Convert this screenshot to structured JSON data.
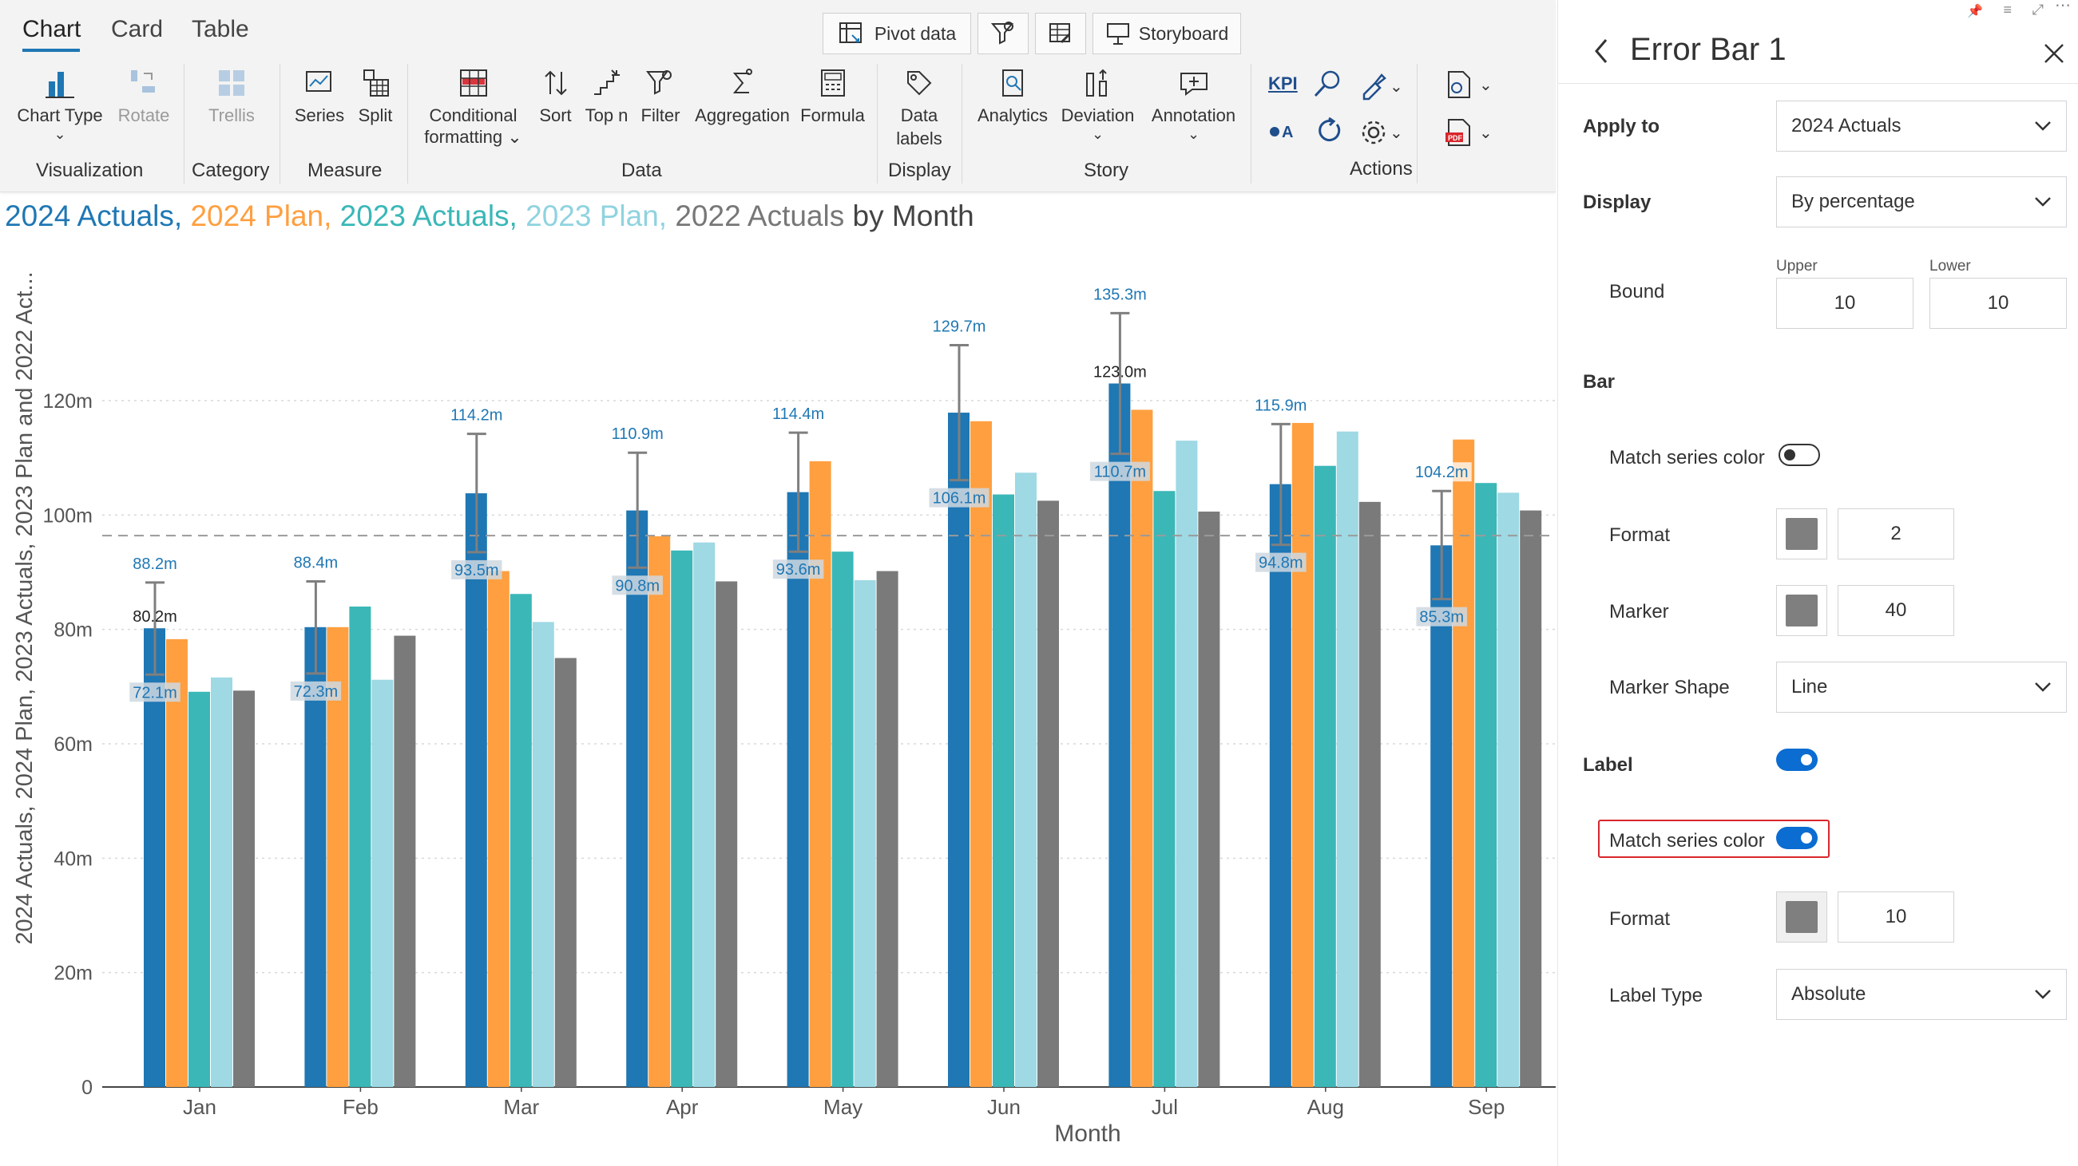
{
  "tabs": [
    {
      "label": "Chart",
      "active": true
    },
    {
      "label": "Card",
      "active": false
    },
    {
      "label": "Table",
      "active": false
    }
  ],
  "top_buttons": {
    "pivot": "Pivot data",
    "storyboard": "Storyboard"
  },
  "ribbon": {
    "chart_type": "Chart Type",
    "rotate": "Rotate",
    "trellis": "Trellis",
    "series": "Series",
    "split": "Split",
    "conditional_1": "Conditional",
    "conditional_2": "formatting",
    "sort": "Sort",
    "topn": "Top n",
    "filter": "Filter",
    "aggregation": "Aggregation",
    "formula": "Formula",
    "data_labels_1": "Data",
    "data_labels_2": "labels",
    "analytics": "Analytics",
    "deviation": "Deviation",
    "annotation": "Annotation",
    "kpi": "KPI",
    "groups": {
      "visualization": "Visualization",
      "category": "Category",
      "measure": "Measure",
      "data": "Data",
      "display": "Display",
      "story": "Story",
      "actions": "Actions"
    }
  },
  "title": {
    "parts": [
      {
        "text": "2024 Actuals,",
        "color": "#1f77b4"
      },
      {
        "text": "2024 Plan,",
        "color": "#ff9f40"
      },
      {
        "text": "2023 Actuals,",
        "color": "#3bb7b7"
      },
      {
        "text": "2023 Plan,",
        "color": "#8fd3e0"
      },
      {
        "text": "2022 Actuals",
        "color": "#777777"
      }
    ],
    "suffix": "by Month"
  },
  "chart_data": {
    "type": "bar",
    "categories": [
      "Jan",
      "Feb",
      "Mar",
      "Apr",
      "May",
      "Jun",
      "Jul",
      "Aug",
      "Sep"
    ],
    "series": [
      {
        "name": "2024 Actuals",
        "color": "#1f77b4",
        "values": [
          80.2,
          80.4,
          103.8,
          100.8,
          104.0,
          117.9,
          123.0,
          105.4,
          94.7
        ]
      },
      {
        "name": "2024 Plan",
        "color": "#ff9f40",
        "values": [
          78.3,
          80.4,
          90.2,
          96.3,
          109.4,
          116.4,
          118.4,
          116.1,
          113.2
        ]
      },
      {
        "name": "2023 Actuals",
        "color": "#3bb7b7",
        "values": [
          69.1,
          84.0,
          86.2,
          93.8,
          93.6,
          103.6,
          104.2,
          108.6,
          105.6
        ]
      },
      {
        "name": "2023 Plan",
        "color": "#9ed9e4",
        "values": [
          71.6,
          71.2,
          81.3,
          95.2,
          88.6,
          107.4,
          113.0,
          114.6,
          103.9
        ]
      },
      {
        "name": "2022 Actuals",
        "color": "#7a7a7a",
        "values": [
          69.3,
          78.9,
          75.0,
          88.4,
          90.2,
          102.5,
          100.6,
          102.3,
          100.8
        ]
      }
    ],
    "error_bars": {
      "series": "2024 Actuals",
      "upper": [
        88.2,
        88.4,
        114.2,
        110.9,
        114.4,
        129.7,
        135.3,
        115.9,
        104.2
      ],
      "lower": [
        72.1,
        72.3,
        93.5,
        90.8,
        93.6,
        106.1,
        110.7,
        94.8,
        85.3
      ],
      "upper_labels": [
        "88.2m",
        "88.4m",
        "114.2m",
        "110.9m",
        "114.4m",
        "129.7m",
        "135.3m",
        "115.9m",
        "104.2m"
      ],
      "lower_labels": [
        "72.1m",
        "72.3m",
        "93.5m",
        "90.8m",
        "93.6m",
        "106.1m",
        "110.7m",
        "94.8m",
        "85.3m"
      ]
    },
    "value_labels": [
      {
        "category": "Jan",
        "text": "80.2m"
      },
      {
        "category": "Jul",
        "text": "123.0m"
      }
    ],
    "reference_line": 96.4,
    "ylim": [
      0,
      140
    ],
    "yticks": [
      0,
      20,
      40,
      60,
      80,
      100,
      120
    ],
    "ytick_labels": [
      "0",
      "20m",
      "40m",
      "60m",
      "80m",
      "100m",
      "120m"
    ],
    "xlabel": "Month",
    "ylabel": "2024 Actuals, 2024 Plan, 2023 Actuals, 2023 Plan and 2022 Act...",
    "grid": true
  },
  "panel": {
    "title": "Error Bar 1",
    "apply_to_label": "Apply to",
    "apply_to_value": "2024 Actuals",
    "display_label": "Display",
    "display_value": "By percentage",
    "bound_label": "Bound",
    "upper_label": "Upper",
    "lower_label": "Lower",
    "upper_value": "10",
    "lower_value": "10",
    "bar_section": "Bar",
    "match_series_color_label": "Match series color",
    "bar_match_on": false,
    "format_label": "Format",
    "bar_format_value": "2",
    "marker_label": "Marker",
    "marker_value": "40",
    "marker_shape_label": "Marker Shape",
    "marker_shape_value": "Line",
    "label_section": "Label",
    "label_on": true,
    "label_match_label": "Match series color",
    "label_match_on": true,
    "label_format_label": "Format",
    "label_format_value": "10",
    "label_type_label": "Label Type",
    "label_type_value": "Absolute",
    "swatch_color": "#7f7f7f",
    "highlight_color": "#d9262c"
  }
}
